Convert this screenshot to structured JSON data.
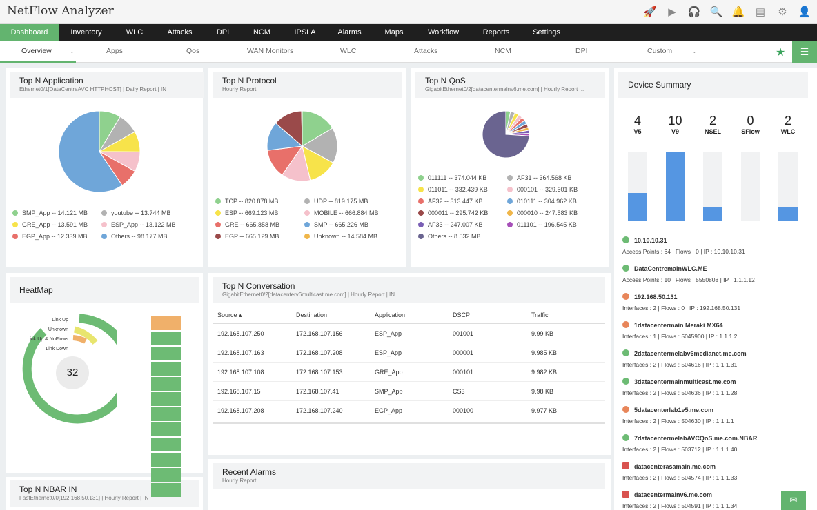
{
  "app": {
    "title": "NetFlow Analyzer"
  },
  "top_icons": [
    "rocket-icon",
    "monitor-play-icon",
    "headset-icon",
    "search-icon",
    "bell-icon",
    "film-icon",
    "gear-icon",
    "user-icon"
  ],
  "main_nav": [
    "Dashboard",
    "Inventory",
    "WLC",
    "Attacks",
    "DPI",
    "NCM",
    "IPSLA",
    "Alarms",
    "Maps",
    "Workflow",
    "Reports",
    "Settings"
  ],
  "sub_nav": [
    "Overview",
    "Apps",
    "Qos",
    "WAN Monitors",
    "WLC",
    "Attacks",
    "NCM",
    "DPI",
    "Custom"
  ],
  "colors": {
    "accent": "#63b46f",
    "nav_bg": "#1f1f1f",
    "bar": "#5596e2",
    "donut": "#6dbb74"
  },
  "top_app": {
    "title": "Top N Application",
    "subtitle": "Ethernet0/1[DataCentreAVC HTTPHOST] | Daily Report | IN",
    "chart_data": {
      "type": "pie",
      "slices": [
        {
          "label": "SMP_App -- 14.121 MB",
          "value": 14.121,
          "color": "#8fd18e"
        },
        {
          "label": "youtube -- 13.744 MB",
          "value": 13.744,
          "color": "#b2b2b2"
        },
        {
          "label": "GRE_App -- 13.591 MB",
          "value": 13.591,
          "color": "#f7e34a"
        },
        {
          "label": "ESP_App -- 13.122 MB",
          "value": 13.122,
          "color": "#f5c1cb"
        },
        {
          "label": "EGP_App -- 12.339 MB",
          "value": 12.339,
          "color": "#e8706a"
        },
        {
          "label": "Others -- 98.177 MB",
          "value": 98.177,
          "color": "#6fa6d9"
        }
      ]
    }
  },
  "top_protocol": {
    "title": "Top N Protocol",
    "subtitle": "Hourly Report",
    "chart_data": {
      "type": "pie",
      "slices": [
        {
          "label": "TCP -- 820.878 MB",
          "value": 820.878,
          "color": "#8fd18e"
        },
        {
          "label": "UDP -- 819.175 MB",
          "value": 819.175,
          "color": "#b2b2b2"
        },
        {
          "label": "ESP -- 669.123 MB",
          "value": 669.123,
          "color": "#f7e34a"
        },
        {
          "label": "MOBILE -- 666.884 MB",
          "value": 666.884,
          "color": "#f5c1cb"
        },
        {
          "label": "GRE -- 665.858 MB",
          "value": 665.858,
          "color": "#e8706a"
        },
        {
          "label": "SMP -- 665.226 MB",
          "value": 665.226,
          "color": "#6fa6d9"
        },
        {
          "label": "EGP -- 665.129 MB",
          "value": 665.129,
          "color": "#9a4a4a"
        },
        {
          "label": "Unknown -- 14.584 MB",
          "value": 14.584,
          "color": "#f0b64a"
        }
      ]
    }
  },
  "top_qos": {
    "title": "Top N QoS",
    "subtitle": "GigabitEthernet0/2[datacentermainv6.me.com] | Hourly Report ...",
    "chart_data": {
      "type": "pie",
      "slices": [
        {
          "label": "011111 -- 374.044 KB",
          "value": 374.044,
          "color": "#8fd18e"
        },
        {
          "label": "AF31 -- 364.568 KB",
          "value": 364.568,
          "color": "#b2b2b2"
        },
        {
          "label": "011011 -- 332.439 KB",
          "value": 332.439,
          "color": "#f7e34a"
        },
        {
          "label": "000101 -- 329.601 KB",
          "value": 329.601,
          "color": "#f5c1cb"
        },
        {
          "label": "AF32 -- 313.447 KB",
          "value": 313.447,
          "color": "#e8706a"
        },
        {
          "label": "010111 -- 304.962 KB",
          "value": 304.962,
          "color": "#6fa6d9"
        },
        {
          "label": "000011 -- 295.742 KB",
          "value": 295.742,
          "color": "#9a4a4a"
        },
        {
          "label": "000010 -- 247.583 KB",
          "value": 247.583,
          "color": "#f0b64a"
        },
        {
          "label": "AF33 -- 247.007 KB",
          "value": 247.007,
          "color": "#7a5fb5"
        },
        {
          "label": "011101 -- 196.545 KB",
          "value": 196.545,
          "color": "#a64fb8"
        },
        {
          "label": "Others -- 8.532 MB",
          "value": 8532,
          "color": "#6a6490"
        }
      ]
    }
  },
  "device_summary": {
    "title": "Device Summary",
    "chart_data": {
      "type": "bar",
      "categories": [
        "V5",
        "V9",
        "NSEL",
        "SFlow",
        "WLC"
      ],
      "values": [
        4,
        10,
        2,
        0,
        2
      ],
      "ylim": [
        0,
        10
      ]
    },
    "devices": [
      {
        "name": "10.10.10.31",
        "detail": "Access Points : 64  |  Flows : 0  |  IP : 10.10.10.31",
        "status": "green"
      },
      {
        "name": "DataCentremainWLC.ME",
        "detail": "Access Points : 10  |  Flows : 5550808  |  IP : 1.1.1.12",
        "status": "green"
      },
      {
        "name": "192.168.50.131",
        "detail": "Interfaces : 2  |  Flows : 0  |  IP : 192.168.50.131",
        "status": "orange"
      },
      {
        "name": "1datacentermain Meraki MX64",
        "detail": "Interfaces : 1  |  Flows : 5045900  |  IP : 1.1.1.2",
        "status": "orange"
      },
      {
        "name": "2datacentermelabv6medianet.me.com",
        "detail": "Interfaces : 2  |  Flows : 504616  |  IP : 1.1.1.31",
        "status": "green"
      },
      {
        "name": "3datacentermainmulticast.me.com",
        "detail": "Interfaces : 2  |  Flows : 504636  |  IP : 1.1.1.28",
        "status": "green"
      },
      {
        "name": "5datacenterlab1v5.me.com",
        "detail": "Interfaces : 2  |  Flows : 504630  |  IP : 1.1.1.1",
        "status": "orange"
      },
      {
        "name": "7datacentermelabAVCQoS.me.com.NBAR",
        "detail": "Interfaces : 2  |  Flows : 503712  |  IP : 1.1.1.40",
        "status": "green"
      },
      {
        "name": "datacenterasamain.me.com",
        "detail": "Interfaces : 2  |  Flows : 504574  |  IP : 1.1.1.33",
        "status": "red"
      },
      {
        "name": "datacentermainv6.me.com",
        "detail": "Interfaces : 2  |  Flows : 504591  |  IP : 1.1.1.34",
        "status": "red"
      }
    ]
  },
  "heatmap": {
    "title": "HeatMap",
    "center_value": "32",
    "labels": [
      "Link Up",
      "Unknown",
      "Link Up & NoFlows",
      "Link Down"
    ],
    "grid_colors": [
      "#f0b06a",
      "#f0b06a",
      "#6dbb74",
      "#6dbb74",
      "#6dbb74",
      "#6dbb74",
      "#6dbb74",
      "#6dbb74",
      "#6dbb74",
      "#6dbb74",
      "#6dbb74",
      "#6dbb74",
      "#6dbb74",
      "#6dbb74",
      "#6dbb74",
      "#6dbb74",
      "#6dbb74",
      "#6dbb74",
      "#6dbb74",
      "#6dbb74",
      "#6dbb74",
      "#6dbb74",
      "#6dbb74",
      "#6dbb74"
    ]
  },
  "conversation": {
    "title": "Top N Conversation",
    "subtitle": "GigabitEthernet0/2[datacenterv6multicast.me.com] | Hourly Report | IN",
    "columns": [
      "Source",
      "Destination",
      "Application",
      "DSCP",
      "Traffic"
    ],
    "rows": [
      [
        "192.168.107.250",
        "172.168.107.156",
        "ESP_App",
        "001001",
        "9.99 KB"
      ],
      [
        "192.168.107.163",
        "172.168.107.208",
        "ESP_App",
        "000001",
        "9.985 KB"
      ],
      [
        "192.168.107.108",
        "172.168.107.153",
        "GRE_App",
        "000101",
        "9.982 KB"
      ],
      [
        "192.168.107.15",
        "172.168.107.41",
        "SMP_App",
        "CS3",
        "9.98 KB"
      ],
      [
        "192.168.107.208",
        "172.168.107.240",
        "EGP_App",
        "000100",
        "9.977 KB"
      ]
    ]
  },
  "alarms": {
    "title": "Recent Alarms",
    "subtitle": "Hourly Report"
  },
  "nbar": {
    "title": "Top N NBAR IN",
    "subtitle": "FastEthernet0/0[192.168.50.131] | Hourly Report | IN"
  }
}
